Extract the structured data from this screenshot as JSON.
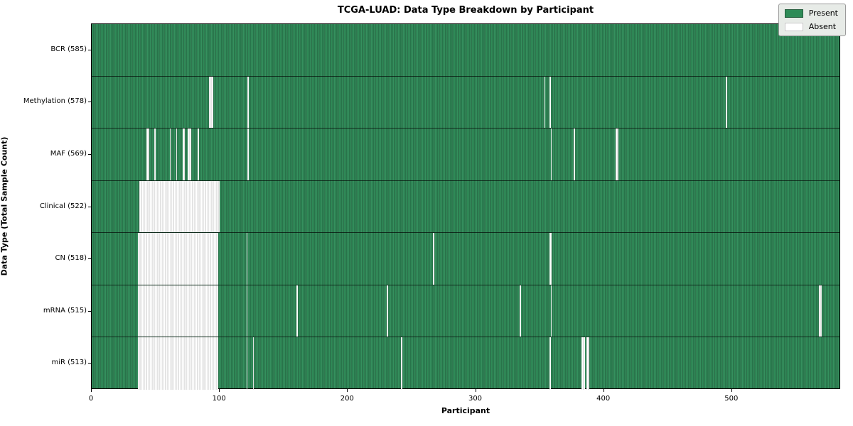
{
  "title": "TCGA-LUAD: Data Type Breakdown by Participant",
  "chart_data": {
    "type": "heatmap",
    "title": "TCGA-LUAD: Data Type Breakdown by Participant",
    "xlabel": "Participant",
    "ylabel": "Data Type (Total Sample Count)",
    "participants_total": 585,
    "x_ticks": [
      0,
      100,
      200,
      300,
      400,
      500
    ],
    "xlim": [
      0,
      585
    ],
    "grid": false,
    "legend_position": "upper right",
    "legend": [
      {
        "label": "Present",
        "color": "#2e8b57"
      },
      {
        "label": "Absent",
        "color": "#ffffff"
      }
    ],
    "colors": {
      "present": "#2e8b57",
      "present_edge": "#235c3c",
      "absent": "#ffffff",
      "absent_edge": "#c8c8c8",
      "legend_bg": "#e7ebe7"
    },
    "rows": [
      {
        "label": "BCR",
        "count": 585,
        "tick_label": "BCR (585)",
        "absent_ranges": []
      },
      {
        "label": "Methylation",
        "count": 578,
        "tick_label": "Methylation (578)",
        "absent_ranges": [
          [
            92,
            95
          ],
          [
            122,
            123
          ],
          [
            354,
            355
          ],
          [
            358,
            359
          ],
          [
            496,
            497
          ]
        ]
      },
      {
        "label": "MAF",
        "count": 569,
        "tick_label": "MAF (569)",
        "absent_ranges": [
          [
            43,
            45
          ],
          [
            49,
            50
          ],
          [
            61,
            62
          ],
          [
            66,
            67
          ],
          [
            71,
            73
          ],
          [
            75,
            78
          ],
          [
            83,
            84
          ],
          [
            122,
            123
          ],
          [
            359,
            360
          ],
          [
            377,
            378
          ],
          [
            410,
            412
          ]
        ]
      },
      {
        "label": "Clinical",
        "count": 522,
        "tick_label": "Clinical (522)",
        "absent_ranges": [
          [
            37,
            100
          ]
        ]
      },
      {
        "label": "CN",
        "count": 518,
        "tick_label": "CN (518)",
        "absent_ranges": [
          [
            36,
            99
          ],
          [
            121,
            122
          ],
          [
            267,
            268
          ],
          [
            358,
            360
          ]
        ]
      },
      {
        "label": "mRNA",
        "count": 515,
        "tick_label": "mRNA (515)",
        "absent_ranges": [
          [
            36,
            99
          ],
          [
            121,
            122
          ],
          [
            160,
            161
          ],
          [
            231,
            232
          ],
          [
            335,
            336
          ],
          [
            359,
            360
          ],
          [
            569,
            571
          ]
        ]
      },
      {
        "label": "miR",
        "count": 513,
        "tick_label": "miR (513)",
        "absent_ranges": [
          [
            36,
            99
          ],
          [
            121,
            122
          ],
          [
            126,
            127
          ],
          [
            242,
            243
          ],
          [
            358,
            359
          ],
          [
            383,
            386
          ],
          [
            387,
            389
          ]
        ]
      }
    ]
  }
}
